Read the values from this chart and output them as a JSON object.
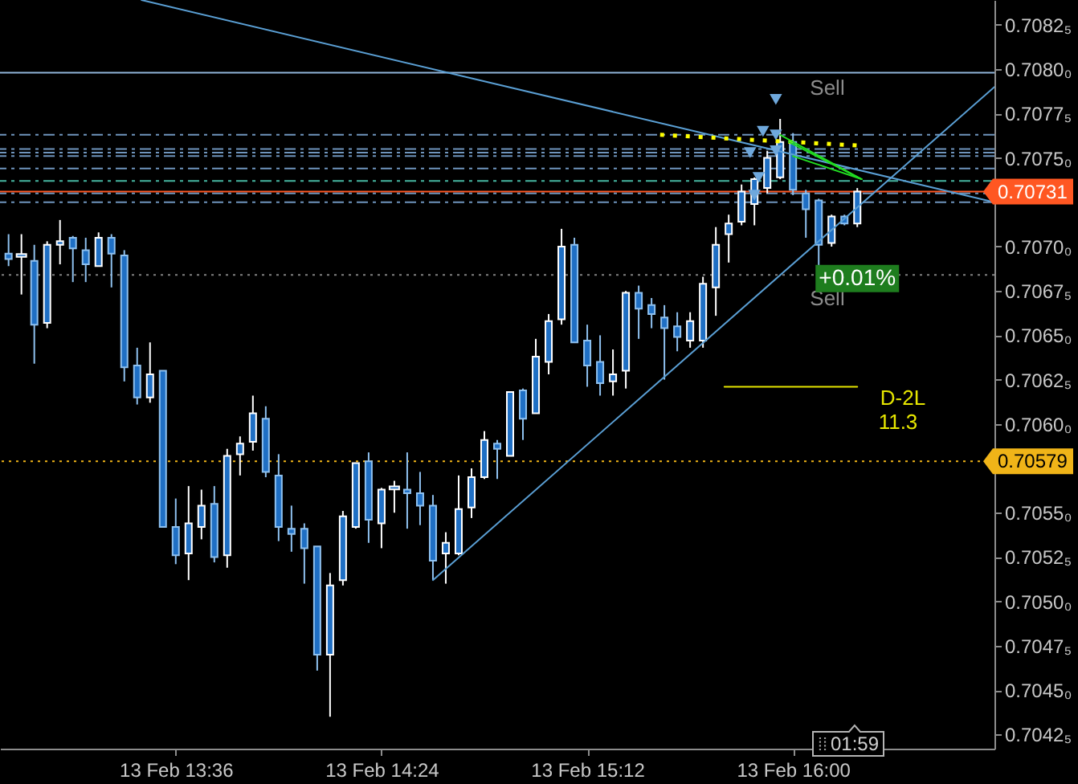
{
  "chart_data": {
    "type": "candlestick",
    "color": "#1f6fc4",
    "x": [
      "--02-13T12:57",
      "--02-13T13:00",
      "--02-13T13:03",
      "--02-13T13:06",
      "--02-13T13:09",
      "--02-13T13:12",
      "--02-13T13:15",
      "--02-13T13:18",
      "--02-13T13:21",
      "--02-13T13:24",
      "--02-13T13:27",
      "--02-13T13:30",
      "--02-13T13:33",
      "--02-13T13:36",
      "--02-13T13:39",
      "--02-13T13:42",
      "--02-13T13:45",
      "--02-13T13:48",
      "--02-13T13:51",
      "--02-13T13:54",
      "--02-13T13:57",
      "--02-13T14:00",
      "--02-13T14:03",
      "--02-13T14:06",
      "--02-13T14:09",
      "--02-13T14:12",
      "--02-13T14:15",
      "--02-13T14:18",
      "--02-13T14:21",
      "--02-13T14:24",
      "--02-13T14:27",
      "--02-13T14:30",
      "--02-13T14:33",
      "--02-13T14:36",
      "--02-13T14:39",
      "--02-13T14:42",
      "--02-13T14:45",
      "--02-13T14:48",
      "--02-13T14:51",
      "--02-13T14:54",
      "--02-13T14:57",
      "--02-13T15:00",
      "--02-13T15:03",
      "--02-13T15:06",
      "--02-13T15:09",
      "--02-13T15:12",
      "--02-13T15:15",
      "--02-13T15:18",
      "--02-13T15:21",
      "--02-13T15:24",
      "--02-13T15:27",
      "--02-13T15:30",
      "--02-13T15:33",
      "--02-13T15:36",
      "--02-13T15:39",
      "--02-13T15:42",
      "--02-13T15:45",
      "--02-13T15:48",
      "--02-13T15:51",
      "--02-13T15:54",
      "--02-13T15:57",
      "--02-13T16:00",
      "--02-13T16:03",
      "--02-13T16:06",
      "--02-13T16:09",
      "--02-13T16:12",
      "--02-13T16:15"
    ],
    "ohlc": [
      [
        0.70696,
        0.70707,
        0.70689,
        0.70693
      ],
      [
        0.70695,
        0.70707,
        0.70673,
        0.70695
      ],
      [
        0.70692,
        0.70701,
        0.70634,
        0.70656
      ],
      [
        0.70657,
        0.70703,
        0.70654,
        0.70701
      ],
      [
        0.70701,
        0.70715,
        0.7069,
        0.70703
      ],
      [
        0.70705,
        0.70706,
        0.7068,
        0.70699
      ],
      [
        0.70698,
        0.70705,
        0.7068,
        0.7069
      ],
      [
        0.70689,
        0.70708,
        0.70689,
        0.70705
      ],
      [
        0.70705,
        0.70707,
        0.70677,
        0.70696
      ],
      [
        0.70695,
        0.70698,
        0.70624,
        0.70632
      ],
      [
        0.70633,
        0.70643,
        0.70611,
        0.70615
      ],
      [
        0.70615,
        0.70646,
        0.70612,
        0.70628
      ],
      [
        0.7063,
        0.7063,
        0.70542,
        0.70542
      ],
      [
        0.70542,
        0.70558,
        0.70521,
        0.70526
      ],
      [
        0.70527,
        0.70565,
        0.70512,
        0.70544
      ],
      [
        0.70542,
        0.70563,
        0.70535,
        0.70554
      ],
      [
        0.70555,
        0.70565,
        0.70522,
        0.70525
      ],
      [
        0.70526,
        0.70586,
        0.70519,
        0.70582
      ],
      [
        0.70583,
        0.70593,
        0.70571,
        0.70589
      ],
      [
        0.7059,
        0.70616,
        0.70585,
        0.70606
      ],
      [
        0.70603,
        0.7061,
        0.7057,
        0.70573
      ],
      [
        0.70571,
        0.70583,
        0.70534,
        0.70542
      ],
      [
        0.70541,
        0.70554,
        0.70528,
        0.70538
      ],
      [
        0.70541,
        0.70544,
        0.7051,
        0.7053
      ],
      [
        0.70531,
        0.70531,
        0.70461,
        0.7047
      ],
      [
        0.7047,
        0.70516,
        0.70435,
        0.70509
      ],
      [
        0.70512,
        0.70551,
        0.70509,
        0.70548
      ],
      [
        0.70542,
        0.70578,
        0.70541,
        0.70578
      ],
      [
        0.70579,
        0.70584,
        0.70533,
        0.70546
      ],
      [
        0.70544,
        0.70564,
        0.7053,
        0.70563
      ],
      [
        0.70564,
        0.70568,
        0.7055,
        0.70564
      ],
      [
        0.70563,
        0.70584,
        0.70541,
        0.70561
      ],
      [
        0.70561,
        0.70573,
        0.70543,
        0.70554
      ],
      [
        0.70554,
        0.7056,
        0.70512,
        0.70523
      ],
      [
        0.70527,
        0.70539,
        0.7051,
        0.70533
      ],
      [
        0.70527,
        0.70571,
        0.70526,
        0.70552
      ],
      [
        0.70553,
        0.70575,
        0.70547,
        0.7057
      ],
      [
        0.7057,
        0.70596,
        0.70569,
        0.70591
      ],
      [
        0.70589,
        0.70591,
        0.70569,
        0.70586
      ],
      [
        0.70582,
        0.70618,
        0.70582,
        0.70618
      ],
      [
        0.70619,
        0.7062,
        0.70591,
        0.70603
      ],
      [
        0.70606,
        0.70648,
        0.70606,
        0.70638
      ],
      [
        0.70635,
        0.70662,
        0.70628,
        0.70658
      ],
      [
        0.70659,
        0.7071,
        0.70656,
        0.707
      ],
      [
        0.70701,
        0.70705,
        0.70646,
        0.70646
      ],
      [
        0.70647,
        0.70656,
        0.70621,
        0.70633
      ],
      [
        0.70635,
        0.7065,
        0.70616,
        0.70623
      ],
      [
        0.70624,
        0.70642,
        0.70616,
        0.70628
      ],
      [
        0.7063,
        0.70675,
        0.7062,
        0.70674
      ],
      [
        0.70674,
        0.70678,
        0.70648,
        0.70665
      ],
      [
        0.70667,
        0.70671,
        0.70654,
        0.70662
      ],
      [
        0.7066,
        0.70667,
        0.70625,
        0.70654
      ],
      [
        0.70655,
        0.70663,
        0.70641,
        0.70649
      ],
      [
        0.70647,
        0.70663,
        0.70643,
        0.70658
      ],
      [
        0.70647,
        0.70683,
        0.70643,
        0.70679
      ],
      [
        0.70677,
        0.70711,
        0.70661,
        0.70701
      ],
      [
        0.70707,
        0.70718,
        0.70691,
        0.70713
      ],
      [
        0.70714,
        0.70735,
        0.70712,
        0.70731
      ],
      [
        0.70724,
        0.70739,
        0.70712,
        0.70738
      ],
      [
        0.70733,
        0.70754,
        0.7073,
        0.7075
      ],
      [
        0.70739,
        0.70772,
        0.70738,
        0.70759
      ],
      [
        0.70759,
        0.70764,
        0.70729,
        0.70732
      ],
      [
        0.7073,
        0.70732,
        0.70705,
        0.70721
      ],
      [
        0.70726,
        0.70727,
        0.70689,
        0.70701
      ],
      [
        0.70702,
        0.70718,
        0.707,
        0.70717
      ],
      [
        0.70717,
        0.70718,
        0.70712,
        0.70713
      ],
      [
        0.70713,
        0.70733,
        0.70711,
        0.70731
      ]
    ],
    "series": [
      {
        "type": "line",
        "color": "#5a9fd4",
        "x": [
          "--02-13T13:28",
          "--02-13T16:47"
        ],
        "values": [
          0.70839,
          0.70725
        ]
      },
      {
        "type": "line",
        "color": "#5a9fd4",
        "x": [
          "--02-13T14:36",
          "--02-13T16:47"
        ],
        "values": [
          0.70512,
          0.7079
        ]
      },
      {
        "type": "line",
        "color": "#ffff00",
        "line_style": "dotted",
        "x": [
          "--02-13T15:29",
          "--02-13T16:15"
        ],
        "values": [
          0.70763,
          0.70757
        ]
      },
      {
        "type": "line",
        "color": "#22dd22",
        "x": [
          "--02-13T15:57",
          "--02-13T16:16"
        ],
        "values": [
          0.70763,
          0.70738
        ]
      },
      {
        "type": "line",
        "color": "#22dd22",
        "x": [
          "--02-13T15:59",
          "--02-13T16:16"
        ],
        "values": [
          0.70759,
          0.70738
        ]
      },
      {
        "type": "line",
        "color": "#22dd22",
        "x": [
          "--02-13T16:00",
          "--02-13T16:16"
        ],
        "values": [
          0.70751,
          0.70738
        ]
      },
      {
        "type": "line",
        "color": "#e6e600",
        "x": [
          "--02-13T15:44",
          "--02-13T16:15"
        ],
        "values": [
          0.70621,
          0.70621
        ]
      },
      {
        "type": "scatter",
        "color": "#6fa8dc",
        "marker": "triangle",
        "x": [
          "--02-13T15:56",
          "--02-13T15:53",
          "--02-13T15:56",
          "--02-13T15:50",
          "--02-13T15:56",
          "--02-13T15:52",
          "--02-13T15:51"
        ],
        "values": [
          0.70783,
          0.70765,
          0.70763,
          0.70753,
          0.70754,
          0.70739,
          0.70729
        ]
      }
    ],
    "ref_lines": [
      {
        "axis": "y",
        "value": 0.70798,
        "color": "#8fb3d9",
        "line_style": "solid"
      },
      {
        "axis": "y",
        "value": 0.70763,
        "color": "#6f95bd",
        "line_style": "dashed"
      },
      {
        "axis": "y",
        "value": 0.70755,
        "color": "#6f95bd",
        "line_style": "dashed"
      },
      {
        "axis": "y",
        "value": 0.70753,
        "color": "#6f95bd",
        "line_style": "dashed"
      },
      {
        "axis": "y",
        "value": 0.70751,
        "color": "#6f95bd",
        "line_style": "dashed"
      },
      {
        "axis": "y",
        "value": 0.70744,
        "color": "#6f95bd",
        "line_style": "dashed"
      },
      {
        "axis": "y",
        "value": 0.70737,
        "color": "#45b5a0",
        "line_style": "dashed"
      },
      {
        "axis": "y",
        "value": 0.70731,
        "color": "#ff5722",
        "line_style": "solid",
        "label": "0.70731"
      },
      {
        "axis": "y",
        "value": 0.7073,
        "color": "#6f95bd",
        "line_style": "dashed"
      },
      {
        "axis": "y",
        "value": 0.70725,
        "color": "#6f95bd",
        "line_style": "dashed"
      },
      {
        "axis": "y",
        "value": 0.70684,
        "color": "#808080",
        "line_style": "dotted"
      },
      {
        "axis": "y",
        "value": 0.70579,
        "color": "#f0b418",
        "line_style": "dotted",
        "label": "0.70579"
      }
    ],
    "annotations": [
      "Sell",
      "Sell",
      {
        "text": "+0.01%",
        "x": "--02-13T16:15",
        "y": 0.70682
      },
      "D-2L",
      "11.3",
      "01:59"
    ],
    "xlim": [
      "--02-13T12:55",
      "--02-13T16:47"
    ],
    "xticks": [
      {
        "value": "--02-13T13:36",
        "label": "13 Feb 13:36"
      },
      {
        "value": "--02-13T14:24",
        "label": "13 Feb 14:24"
      },
      {
        "value": "--02-13T15:12",
        "label": "13 Feb 15:12"
      },
      {
        "value": "--02-13T16:00",
        "label": "13 Feb 16:00"
      }
    ],
    "ylim": [
      0.70417,
      0.70839
    ],
    "yticks": [
      {
        "value": 0.70425,
        "label": "0.7042₅"
      },
      {
        "value": 0.7045,
        "label": "0.7045₀"
      },
      {
        "value": 0.70475,
        "label": "0.7047₅"
      },
      {
        "value": 0.705,
        "label": "0.7050₀"
      },
      {
        "value": 0.70525,
        "label": "0.7052₅"
      },
      {
        "value": 0.7055,
        "label": "0.7055₀"
      },
      {
        "value": 0.706,
        "label": "0.7060₀"
      },
      {
        "value": 0.70625,
        "label": "0.7062₅"
      },
      {
        "value": 0.7065,
        "label": "0.7065₀"
      },
      {
        "value": 0.70675,
        "label": "0.7067₅"
      },
      {
        "value": 0.707,
        "label": "0.7070₀"
      },
      {
        "value": 0.7075,
        "label": "0.7075₀"
      },
      {
        "value": 0.70775,
        "label": "0.7077₅"
      },
      {
        "value": 0.708,
        "label": "0.7080₀"
      },
      {
        "value": 0.70825,
        "label": "0.7082₅"
      }
    ]
  }
}
